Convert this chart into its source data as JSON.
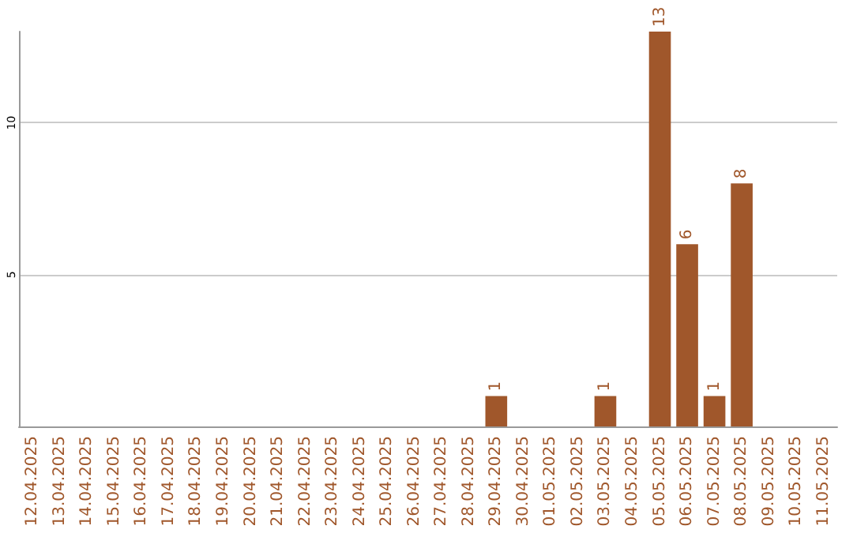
{
  "chart_data": {
    "type": "bar",
    "categories": [
      "12.04.2025",
      "13.04.2025",
      "14.04.2025",
      "15.04.2025",
      "16.04.2025",
      "17.04.2025",
      "18.04.2025",
      "19.04.2025",
      "20.04.2025",
      "21.04.2025",
      "22.04.2025",
      "23.04.2025",
      "24.04.2025",
      "25.04.2025",
      "26.04.2025",
      "27.04.2025",
      "28.04.2025",
      "29.04.2025",
      "30.04.2025",
      "01.05.2025",
      "02.05.2025",
      "03.05.2025",
      "04.05.2025",
      "05.05.2025",
      "06.05.2025",
      "07.05.2025",
      "08.05.2025",
      "09.05.2025",
      "10.05.2025",
      "11.05.2025"
    ],
    "values": [
      0,
      0,
      0,
      0,
      0,
      0,
      0,
      0,
      0,
      0,
      0,
      0,
      0,
      0,
      0,
      0,
      0,
      1,
      0,
      0,
      0,
      1,
      0,
      13,
      6,
      1,
      8,
      0,
      0,
      0
    ],
    "value_labels": [
      null,
      null,
      null,
      null,
      null,
      null,
      null,
      null,
      null,
      null,
      null,
      null,
      null,
      null,
      null,
      null,
      null,
      "1",
      null,
      null,
      null,
      "1",
      null,
      "13",
      "6",
      "1",
      "8",
      null,
      null,
      null
    ],
    "color": "#a0572b",
    "ylim": [
      0,
      13
    ],
    "yticks": [
      5,
      10
    ],
    "grid": "y"
  }
}
